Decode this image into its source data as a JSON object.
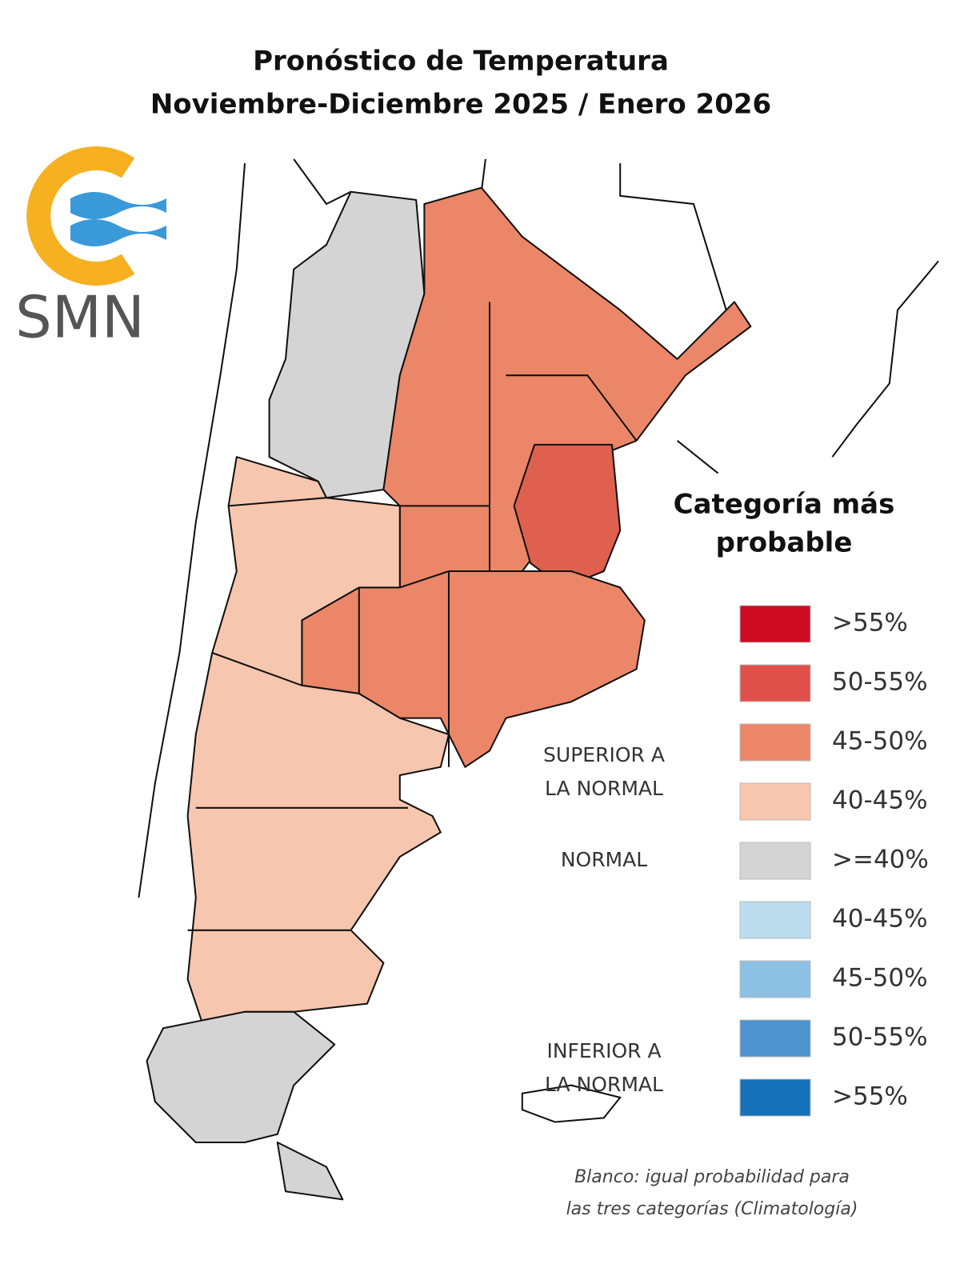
{
  "title": [
    "Pronóstico de Temperatura",
    "Noviembre-Diciembre 2025 / Enero 2026"
  ],
  "logo": {
    "text": "SMN"
  },
  "legend": {
    "title": [
      "Categoría más",
      "probable"
    ],
    "groups": [
      {
        "label": [
          "SUPERIOR A",
          "LA NORMAL"
        ],
        "items": [
          {
            "label": ">55%",
            "color": "#cc0a22"
          },
          {
            "label": "50-55%",
            "color": "#e0504a"
          },
          {
            "label": "45-50%",
            "color": "#ec8668"
          },
          {
            "label": "40-45%",
            "color": "#f7c6ae"
          }
        ]
      },
      {
        "label": [
          "NORMAL"
        ],
        "items": [
          {
            "label": ">=40%",
            "color": "#d4d4d4"
          }
        ]
      },
      {
        "label": [
          "INFERIOR A",
          "LA NORMAL"
        ],
        "items": [
          {
            "label": "40-45%",
            "color": "#bcdcee"
          },
          {
            "label": "45-50%",
            "color": "#8cc1e3"
          },
          {
            "label": "50-55%",
            "color": "#4d93cf"
          },
          {
            "label": ">55%",
            "color": "#1571ba"
          }
        ]
      }
    ]
  },
  "note": [
    "Blanco: igual probabilidad para",
    "las tres categorías (Climatología)"
  ]
}
